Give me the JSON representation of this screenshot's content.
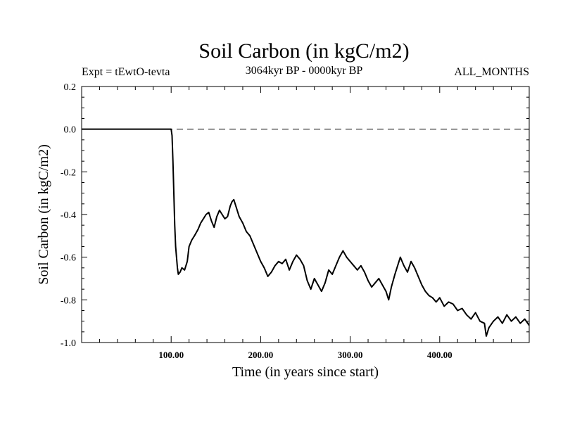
{
  "chart_data": {
    "type": "line",
    "title": "Soil Carbon (in kgC/m2)",
    "experiment_label": "Expt = tEwtO-tevta",
    "period_label": "3064kyr BP - 0000kyr BP",
    "season_label": "ALL_MONTHS",
    "xlabel": "Time (in years since start)",
    "ylabel": "Soil Carbon (in kgC/m2)",
    "xlim": [
      0,
      500
    ],
    "ylim": [
      -1.0,
      0.2
    ],
    "x_ticks": [
      100,
      200,
      300,
      400
    ],
    "x_tick_labels": [
      "100.00",
      "200.00",
      "300.00",
      "400.00"
    ],
    "y_ticks": [
      0.2,
      0.0,
      -0.2,
      -0.4,
      -0.6,
      -0.8,
      -1.0
    ],
    "y_tick_labels": [
      "0.2",
      "0.0",
      "-0.2",
      "-0.4",
      "-0.6",
      "-0.8",
      "-1.0"
    ],
    "reference_line_y": 0.0,
    "grid": false,
    "series": [
      {
        "x": [
          0,
          50,
          100,
          101,
          102,
          103,
          104,
          105,
          106,
          107,
          108,
          110,
          112,
          115,
          118,
          120,
          123,
          126,
          130,
          133,
          136,
          139,
          142,
          145,
          148,
          151,
          154,
          157,
          160,
          163,
          166,
          168,
          170,
          173,
          176,
          180,
          184,
          188,
          192,
          196,
          200,
          204,
          208,
          212,
          216,
          220,
          224,
          228,
          232,
          236,
          240,
          244,
          248,
          252,
          256,
          260,
          264,
          268,
          272,
          276,
          280,
          284,
          288,
          292,
          296,
          300,
          304,
          308,
          312,
          316,
          320,
          324,
          328,
          332,
          336,
          340,
          343,
          346,
          350,
          353,
          356,
          360,
          364,
          368,
          372,
          376,
          380,
          384,
          388,
          392,
          396,
          400,
          405,
          410,
          415,
          420,
          425,
          430,
          435,
          440,
          445,
          450,
          452,
          455,
          460,
          465,
          470,
          475,
          480,
          485,
          490,
          495,
          500
        ],
        "y": [
          0.0,
          0.0,
          0.0,
          -0.03,
          -0.15,
          -0.3,
          -0.45,
          -0.55,
          -0.6,
          -0.65,
          -0.68,
          -0.67,
          -0.65,
          -0.66,
          -0.62,
          -0.55,
          -0.52,
          -0.5,
          -0.47,
          -0.44,
          -0.42,
          -0.4,
          -0.39,
          -0.43,
          -0.46,
          -0.41,
          -0.38,
          -0.4,
          -0.42,
          -0.41,
          -0.36,
          -0.34,
          -0.33,
          -0.37,
          -0.41,
          -0.44,
          -0.48,
          -0.5,
          -0.54,
          -0.58,
          -0.62,
          -0.65,
          -0.69,
          -0.67,
          -0.64,
          -0.62,
          -0.63,
          -0.61,
          -0.66,
          -0.62,
          -0.59,
          -0.61,
          -0.64,
          -0.71,
          -0.75,
          -0.7,
          -0.73,
          -0.76,
          -0.72,
          -0.66,
          -0.68,
          -0.64,
          -0.6,
          -0.57,
          -0.6,
          -0.62,
          -0.64,
          -0.66,
          -0.64,
          -0.67,
          -0.71,
          -0.74,
          -0.72,
          -0.7,
          -0.73,
          -0.76,
          -0.8,
          -0.74,
          -0.68,
          -0.64,
          -0.6,
          -0.64,
          -0.67,
          -0.62,
          -0.65,
          -0.69,
          -0.73,
          -0.76,
          -0.78,
          -0.79,
          -0.81,
          -0.79,
          -0.83,
          -0.81,
          -0.82,
          -0.85,
          -0.84,
          -0.87,
          -0.89,
          -0.86,
          -0.9,
          -0.91,
          -0.97,
          -0.93,
          -0.9,
          -0.88,
          -0.91,
          -0.87,
          -0.9,
          -0.88,
          -0.91,
          -0.89,
          -0.92
        ]
      }
    ]
  }
}
